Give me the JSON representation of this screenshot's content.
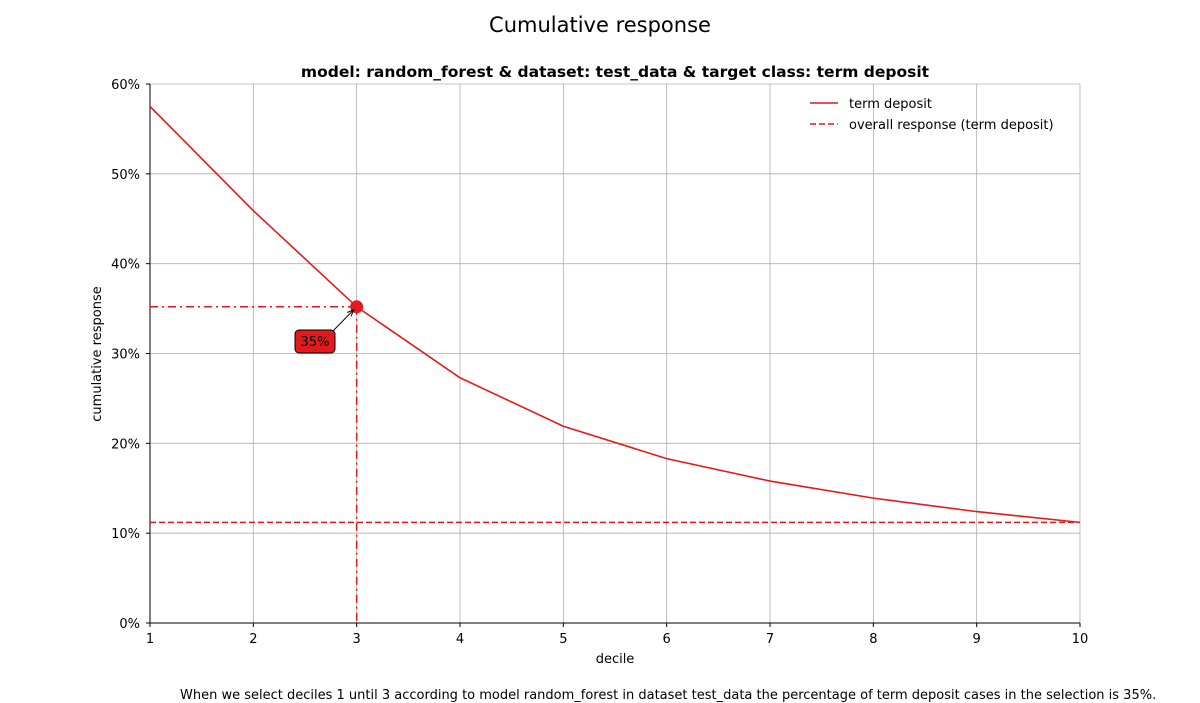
{
  "chart_data": {
    "type": "line",
    "title": "Cumulative response",
    "subtitle": "model: random_forest & dataset: test_data & target class: term deposit",
    "xlabel": "decile",
    "ylabel": "cumulative response",
    "xlim": [
      1,
      10
    ],
    "ylim": [
      0,
      0.6
    ],
    "x_ticks": [
      1,
      2,
      3,
      4,
      5,
      6,
      7,
      8,
      9,
      10
    ],
    "y_ticks": [
      0,
      0.1,
      0.2,
      0.3,
      0.4,
      0.5,
      0.6
    ],
    "y_tick_labels": [
      "0%",
      "10%",
      "20%",
      "30%",
      "40%",
      "50%",
      "60%"
    ],
    "grid": true,
    "legend_position": "top-right",
    "series": [
      {
        "name": "term deposit",
        "style": "solid",
        "color": "#e31a1c",
        "x": [
          1,
          2,
          3,
          4,
          5,
          6,
          7,
          8,
          9,
          10
        ],
        "values": [
          0.575,
          0.459,
          0.352,
          0.273,
          0.219,
          0.183,
          0.158,
          0.139,
          0.124,
          0.112
        ]
      },
      {
        "name": "overall response (term deposit)",
        "style": "dashed",
        "color": "#e31a1c",
        "x": [
          1,
          10
        ],
        "values": [
          0.112,
          0.112
        ]
      }
    ],
    "highlight": {
      "x": 3,
      "y": 0.352,
      "label": "35%"
    },
    "footnote": "When we select deciles 1 until 3 according to model random_forest in dataset test_data the percentage of term deposit cases in the selection is 35%."
  }
}
